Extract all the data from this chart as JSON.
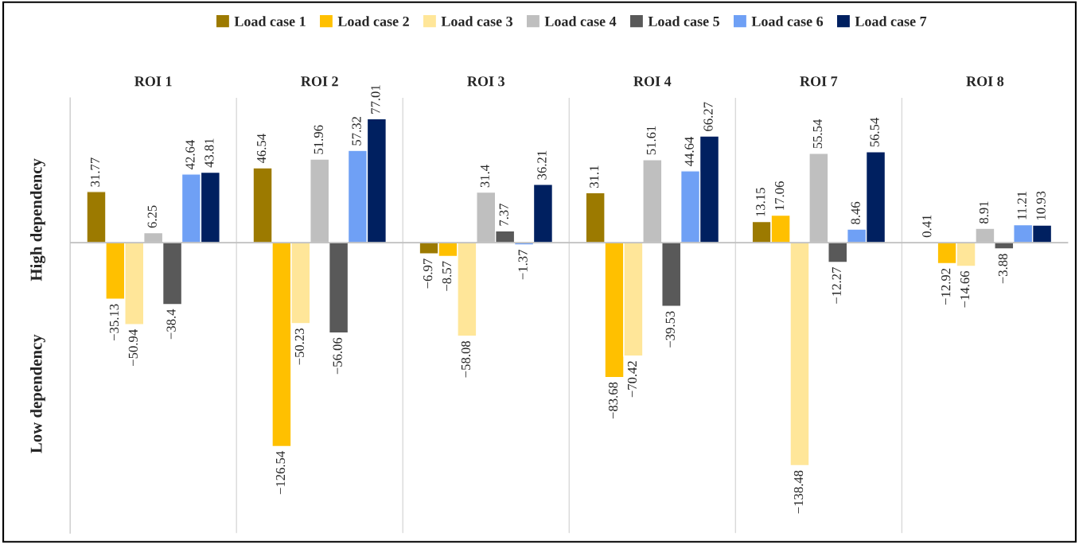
{
  "chart_data": {
    "type": "bar",
    "categories": [
      "ROI 1",
      "ROI 2",
      "ROI 3",
      "ROI 4",
      "ROI 7",
      "ROI 8"
    ],
    "series": [
      {
        "name": "Load case 1",
        "color": "#9c7a00",
        "values": [
          31.77,
          46.54,
          -6.97,
          31.1,
          13.15,
          0.41
        ]
      },
      {
        "name": "Load case 2",
        "color": "#ffc000",
        "values": [
          -35.13,
          -126.54,
          -8.57,
          -83.68,
          17.06,
          -12.92
        ]
      },
      {
        "name": "Load case 3",
        "color": "#ffe699",
        "values": [
          -50.94,
          -50.23,
          -58.08,
          -70.42,
          -138.48,
          -14.66
        ]
      },
      {
        "name": "Load case 4",
        "color": "#bfbfbf",
        "values": [
          6.25,
          51.96,
          31.4,
          51.61,
          55.54,
          8.91
        ]
      },
      {
        "name": "Load case 5",
        "color": "#595959",
        "values": [
          -38.4,
          -56.06,
          7.37,
          -39.53,
          -12.27,
          -3.88
        ]
      },
      {
        "name": "Load case 6",
        "color": "#6fa0f5",
        "values": [
          42.64,
          57.32,
          -1.37,
          44.64,
          8.46,
          11.21
        ]
      },
      {
        "name": "Load case 7",
        "color": "#002060",
        "values": [
          43.81,
          77.01,
          36.21,
          66.27,
          56.54,
          10.93
        ]
      }
    ],
    "annotations": [
      "High dependency",
      "Low dependency"
    ],
    "data_labels": true,
    "legend": "top",
    "grid": "x",
    "tick_labels": "x"
  }
}
